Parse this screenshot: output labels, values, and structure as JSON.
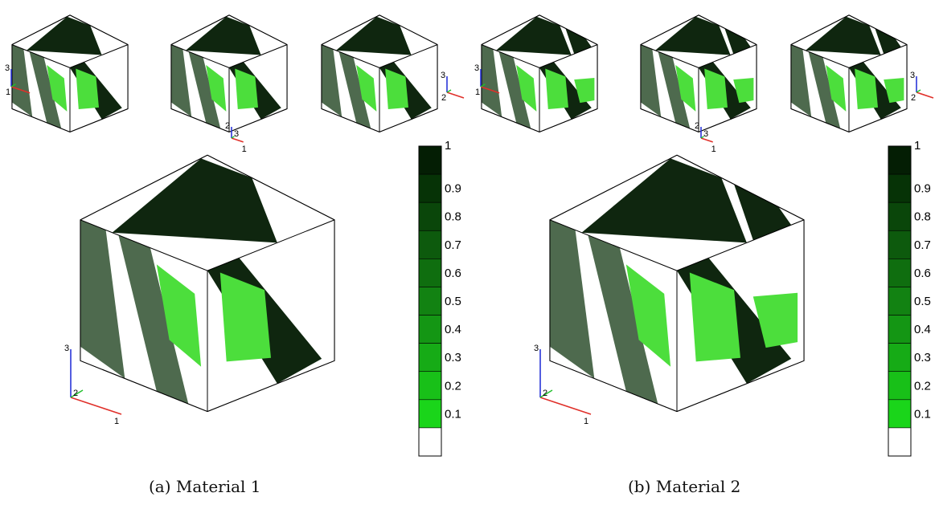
{
  "panels": [
    {
      "id": "a",
      "caption": "(a) Material 1",
      "small_views": [
        {
          "axis_labels": [
            "3",
            "1"
          ]
        },
        {
          "axis_labels": [
            "2",
            "3",
            "1"
          ]
        },
        {
          "axis_labels": [
            "3",
            "2"
          ]
        }
      ],
      "main_axis_labels": [
        "3",
        "2",
        "1"
      ]
    },
    {
      "id": "b",
      "caption": "(b) Material 2",
      "small_views": [
        {
          "axis_labels": [
            "3",
            "1"
          ]
        },
        {
          "axis_labels": [
            "2",
            "3",
            "1"
          ]
        },
        {
          "axis_labels": [
            "3",
            "2"
          ]
        }
      ],
      "main_axis_labels": [
        "3",
        "2",
        "1"
      ]
    }
  ],
  "colorbar": {
    "ticks": [
      "1",
      "0.9",
      "0.8",
      "0.7",
      "0.6",
      "0.5",
      "0.4",
      "0.3",
      "0.2",
      "0.1"
    ],
    "colors": [
      "#041e04",
      "#063306",
      "#0a460a",
      "#0d5a0d",
      "#0f6e0f",
      "#128212",
      "#149614",
      "#16ab16",
      "#18c018",
      "#1ad51a",
      "#ffffff"
    ]
  },
  "colors": {
    "dark": "#0f260f",
    "mid": "#4e6a4e",
    "light": "#4cde3c",
    "axis_x": "#e0302a",
    "axis_y": "#1fbf2a",
    "axis_z": "#2a36d8"
  }
}
